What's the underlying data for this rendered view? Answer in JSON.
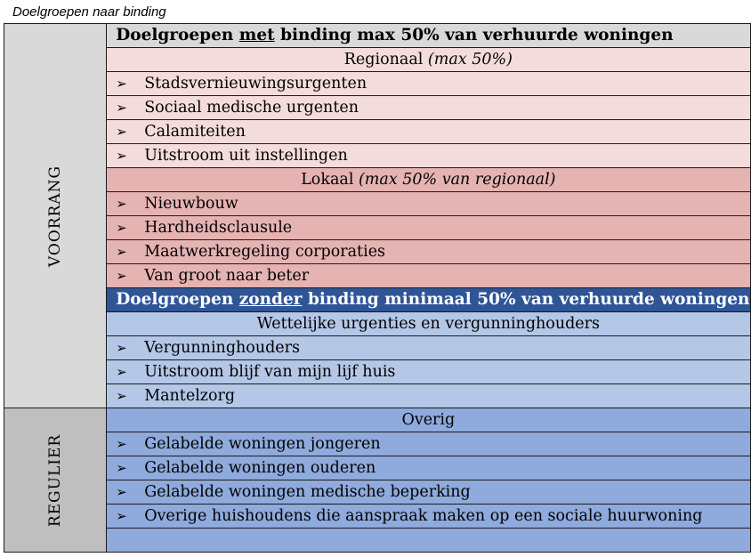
{
  "caption": "Doelgroepen naar binding",
  "sides": {
    "voorrang": "VOORRANG",
    "regulier": "REGULIER"
  },
  "section_met": {
    "pre": "Doelgroepen ",
    "u": "met",
    "post": " binding max 50% van verhuurde woningen"
  },
  "regionaal": {
    "label": "Regionaal ",
    "note": "(max 50%)"
  },
  "regionaal_items": [
    "Stadsvernieuwingsurgenten",
    "Sociaal medische urgenten",
    "Calamiteiten",
    "Uitstroom uit instellingen"
  ],
  "lokaal": {
    "label": "Lokaal ",
    "note": "(max 50% van regionaal)"
  },
  "lokaal_items": [
    "Nieuwbouw",
    "Hardheidsclausule",
    "Maatwerkregeling corporaties",
    "Van groot naar beter"
  ],
  "section_zonder": {
    "pre": "Doelgroepen ",
    "u": "zonder",
    "post": " binding minimaal 50% van verhuurde woningen"
  },
  "wettelijk": {
    "label": "Wettelijke urgenties en vergunninghouders"
  },
  "wettelijk_items": [
    "Vergunninghouders",
    "Uitstroom blijf van mijn lijf huis",
    "Mantelzorg"
  ],
  "overig": {
    "label": "Overig"
  },
  "overig_items": [
    "Gelabelde woningen jongeren",
    "Gelabelde woningen ouderen",
    "Gelabelde woningen medische beperking",
    "Overige huishoudens die aanspraak maken op een sociale huurwoning"
  ],
  "bullet_glyph": "➢",
  "colors": {
    "pink_light": "#f4dcdc",
    "pink_med": "#e6b3b3",
    "blue_header": "#2f5597",
    "blue_light": "#b4c7e7",
    "blue_med": "#8faadc",
    "gray": "#d9d9d9"
  }
}
